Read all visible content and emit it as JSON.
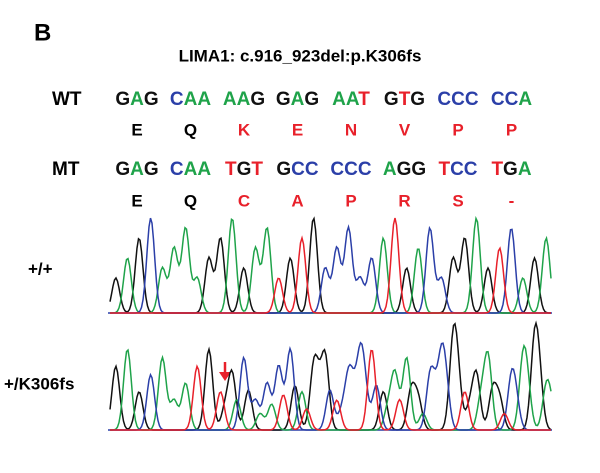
{
  "panel_label": "B",
  "title": "LIMA1: c.916_923del:p.K306fs",
  "rows": [
    {
      "label": "WT",
      "codons": [
        "GAG",
        "CAA",
        "AAG",
        "GAG",
        "AAT",
        "GTG",
        "CCC",
        "CCA"
      ],
      "protein": [
        {
          "aa": "E",
          "color": "#000000"
        },
        {
          "aa": "Q",
          "color": "#000000"
        },
        {
          "aa": "K",
          "color": "#e8202a"
        },
        {
          "aa": "E",
          "color": "#e8202a"
        },
        {
          "aa": "N",
          "color": "#e8202a"
        },
        {
          "aa": "V",
          "color": "#e8202a"
        },
        {
          "aa": "P",
          "color": "#e8202a"
        },
        {
          "aa": "P",
          "color": "#e8202a"
        }
      ]
    },
    {
      "label": "MT",
      "codons": [
        "GAG",
        "CAA",
        "TGT",
        "GCC",
        "CCC",
        "AGG",
        "TCC",
        "TGA"
      ],
      "protein": [
        {
          "aa": "E",
          "color": "#000000"
        },
        {
          "aa": "Q",
          "color": "#000000"
        },
        {
          "aa": "C",
          "color": "#e8202a"
        },
        {
          "aa": "A",
          "color": "#e8202a"
        },
        {
          "aa": "P",
          "color": "#e8202a"
        },
        {
          "aa": "R",
          "color": "#e8202a"
        },
        {
          "aa": "S",
          "color": "#e8202a"
        },
        {
          "aa": "-",
          "color": "#e8202a"
        }
      ]
    }
  ],
  "base_colors": {
    "G": "#111111",
    "A": "#1fa34a",
    "C": "#2b3fa8",
    "T": "#e8202a"
  },
  "traces": [
    {
      "label": "+/+"
    },
    {
      "label": "+/K306fs"
    }
  ]
}
